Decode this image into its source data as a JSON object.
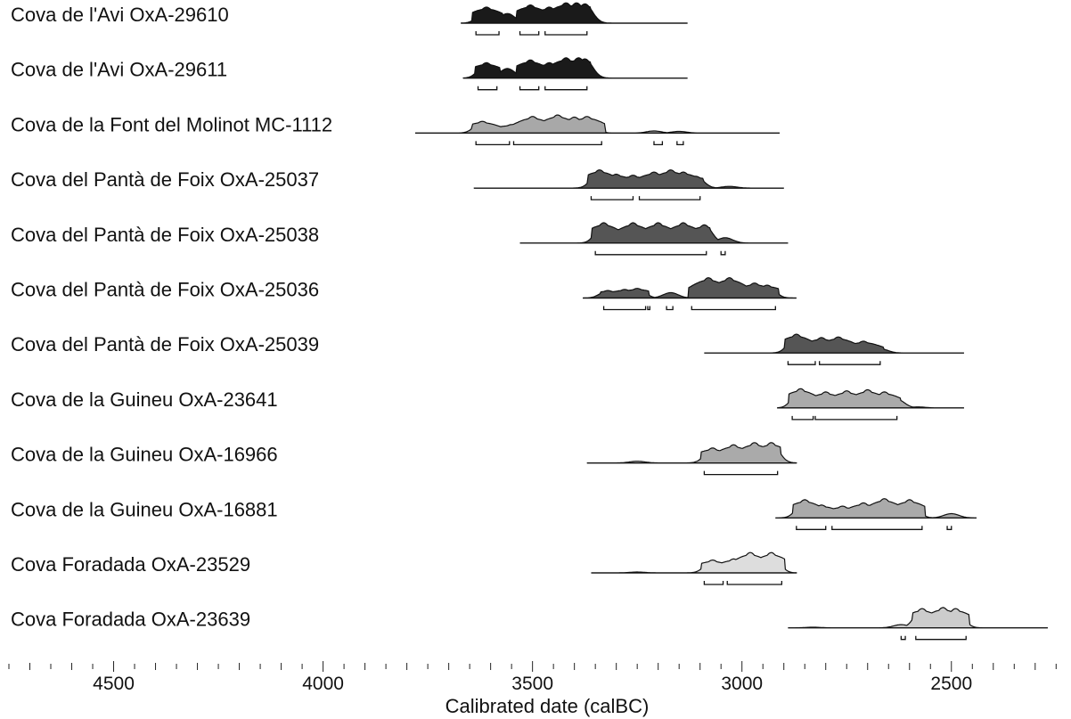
{
  "chart_data": {
    "type": "area",
    "title": "",
    "xlabel": "Calibrated date (calBC)",
    "ylabel": "",
    "xlim": [
      4750,
      2240
    ],
    "x_ticks": [
      4500,
      4000,
      3500,
      3000,
      2500
    ],
    "minor_tick_step": 50,
    "grid": false,
    "series": [
      {
        "name": "Cova de l'Avi OxA-29610",
        "color": "#1a1a1a",
        "range": [
          3670,
          3130
        ],
        "peaks": [
          [
            3610,
            0.75
          ],
          [
            3560,
            0.45
          ],
          [
            3505,
            0.85
          ],
          [
            3460,
            0.75
          ],
          [
            3420,
            0.95
          ],
          [
            3395,
            0.95
          ],
          [
            3375,
            0.9
          ]
        ],
        "hpd": [
          [
            3635,
            3580
          ],
          [
            3530,
            3485
          ],
          [
            3470,
            3370
          ]
        ]
      },
      {
        "name": "Cova de l'Avi OxA-29611",
        "color": "#1a1a1a",
        "range": [
          3665,
          3130
        ],
        "peaks": [
          [
            3610,
            0.72
          ],
          [
            3560,
            0.45
          ],
          [
            3505,
            0.85
          ],
          [
            3460,
            0.72
          ],
          [
            3420,
            0.95
          ],
          [
            3390,
            0.95
          ],
          [
            3375,
            0.9
          ]
        ],
        "hpd": [
          [
            3630,
            3585
          ],
          [
            3530,
            3485
          ],
          [
            3470,
            3370
          ]
        ]
      },
      {
        "name": "Cova de la Font del Molinot MC-1112",
        "color": "#a8a8a8",
        "range": [
          3780,
          2910
        ],
        "peaks": [
          [
            3620,
            0.55
          ],
          [
            3550,
            0.4
          ],
          [
            3500,
            0.78
          ],
          [
            3440,
            0.85
          ],
          [
            3400,
            0.75
          ],
          [
            3370,
            0.78
          ],
          [
            3210,
            0.1
          ],
          [
            3150,
            0.08
          ]
        ],
        "hpd": [
          [
            3635,
            3555
          ],
          [
            3545,
            3335
          ],
          [
            3210,
            3190
          ],
          [
            3155,
            3140
          ]
        ]
      },
      {
        "name": "Cova del Pantà de Foix OxA-25037",
        "color": "#555555",
        "range": [
          3640,
          2900
        ],
        "peaks": [
          [
            3340,
            0.85
          ],
          [
            3300,
            0.65
          ],
          [
            3260,
            0.6
          ],
          [
            3210,
            0.75
          ],
          [
            3170,
            0.85
          ],
          [
            3140,
            0.75
          ],
          [
            3110,
            0.55
          ],
          [
            3030,
            0.08
          ]
        ],
        "hpd": [
          [
            3360,
            3260
          ],
          [
            3245,
            3100
          ]
        ]
      },
      {
        "name": "Cova del Pantà de Foix OxA-25038",
        "color": "#555555",
        "range": [
          3530,
          2890
        ],
        "peaks": [
          [
            3330,
            0.95
          ],
          [
            3260,
            0.95
          ],
          [
            3200,
            0.95
          ],
          [
            3140,
            0.95
          ],
          [
            3090,
            0.85
          ],
          [
            3040,
            0.25
          ]
        ],
        "hpd": [
          [
            3350,
            3085
          ],
          [
            3050,
            3040
          ]
        ]
      },
      {
        "name": "Cova del Pantà de Foix OxA-25036",
        "color": "#555555",
        "range": [
          3380,
          2870
        ],
        "peaks": [
          [
            3320,
            0.35
          ],
          [
            3280,
            0.4
          ],
          [
            3250,
            0.45
          ],
          [
            3170,
            0.25
          ],
          [
            3080,
            0.95
          ],
          [
            3030,
            0.95
          ],
          [
            2970,
            0.7
          ],
          [
            2940,
            0.6
          ]
        ],
        "hpd": [
          [
            3330,
            3230
          ],
          [
            3225,
            3220
          ],
          [
            3180,
            3165
          ],
          [
            3120,
            2920
          ]
        ]
      },
      {
        "name": "Cova del Pantà de Foix OxA-25039",
        "color": "#555555",
        "range": [
          3090,
          2470
        ],
        "peaks": [
          [
            2870,
            0.88
          ],
          [
            2810,
            0.72
          ],
          [
            2770,
            0.75
          ],
          [
            2710,
            0.55
          ],
          [
            2670,
            0.2
          ]
        ],
        "hpd": [
          [
            2890,
            2825
          ],
          [
            2815,
            2670
          ]
        ]
      },
      {
        "name": "Cova de la Guineu OxA-23641",
        "color": "#aaaaaa",
        "range": [
          2915,
          2470
        ],
        "peaks": [
          [
            2860,
            0.9
          ],
          [
            2800,
            0.75
          ],
          [
            2750,
            0.8
          ],
          [
            2700,
            0.85
          ],
          [
            2660,
            0.75
          ],
          [
            2630,
            0.4
          ],
          [
            2580,
            0.05
          ]
        ],
        "hpd": [
          [
            2880,
            2830
          ],
          [
            2825,
            2630
          ]
        ]
      },
      {
        "name": "Cova de la Guineu OxA-16966",
        "color": "#aaaaaa",
        "range": [
          3370,
          2870
        ],
        "peaks": [
          [
            3070,
            0.7
          ],
          [
            3020,
            0.85
          ],
          [
            2970,
            0.95
          ],
          [
            2930,
            0.95
          ],
          [
            3250,
            0.08
          ]
        ],
        "hpd": [
          [
            3090,
            2915
          ]
        ]
      },
      {
        "name": "Cova de la Guineu OxA-16881",
        "color": "#aaaaaa",
        "range": [
          2920,
          2440
        ],
        "peaks": [
          [
            2850,
            0.85
          ],
          [
            2810,
            0.6
          ],
          [
            2760,
            0.55
          ],
          [
            2710,
            0.7
          ],
          [
            2660,
            0.9
          ],
          [
            2600,
            0.85
          ],
          [
            2500,
            0.2
          ]
        ],
        "hpd": [
          [
            2870,
            2800
          ],
          [
            2785,
            2570
          ],
          [
            2510,
            2500
          ]
        ]
      },
      {
        "name": "Cova Foradada OxA-23529",
        "color": "#dddddd",
        "range": [
          3360,
          2870
        ],
        "peaks": [
          [
            3070,
            0.6
          ],
          [
            3020,
            0.65
          ],
          [
            2980,
            0.95
          ],
          [
            2930,
            0.95
          ],
          [
            3250,
            0.04
          ]
        ],
        "hpd": [
          [
            3090,
            3045
          ],
          [
            3035,
            2905
          ]
        ]
      },
      {
        "name": "Cova Foradada OxA-23639",
        "color": "#cccccc",
        "range": [
          2890,
          2270
        ],
        "peaks": [
          [
            2570,
            0.9
          ],
          [
            2520,
            0.95
          ],
          [
            2490,
            0.9
          ],
          [
            2620,
            0.15
          ],
          [
            2830,
            0.03
          ]
        ],
        "hpd": [
          [
            2620,
            2610
          ],
          [
            2585,
            2465
          ]
        ]
      }
    ]
  }
}
